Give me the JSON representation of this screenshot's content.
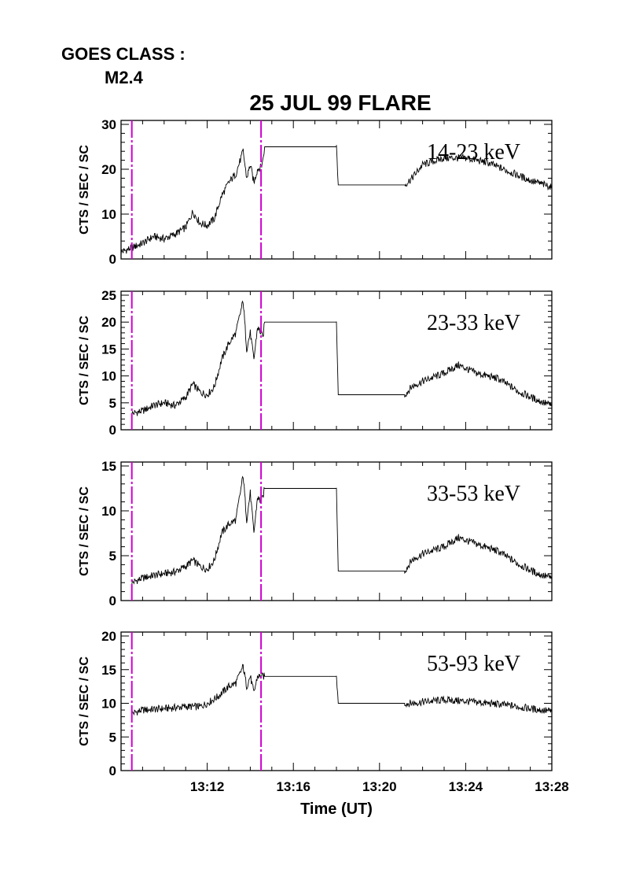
{
  "goes_class_label": "GOES CLASS :",
  "goes_class_value": "M2.4",
  "chart_data": [
    {
      "type": "line",
      "title": "25 JUL 99 FLARE",
      "band_label": "14-23 keV",
      "xlabel": "",
      "ylabel": "CTS / SEC / SC",
      "xlim": [
        "13:08:00",
        "13:28:00"
      ],
      "ylim": [
        0,
        30
      ],
      "yticks": [
        0,
        10,
        20,
        30
      ],
      "xtick_labels": [],
      "markers": [
        "13:08:30",
        "13:14:30"
      ],
      "series": [
        {
          "x": [
            "13:08:00",
            "13:08:30",
            "13:09:00",
            "13:09:30",
            "13:10:00",
            "13:10:30",
            "13:11:00",
            "13:11:20",
            "13:11:40",
            "13:12:00",
            "13:12:20",
            "13:12:40",
            "13:13:00",
            "13:13:20",
            "13:13:40",
            "13:13:50",
            "13:14:00",
            "13:14:10",
            "13:14:20",
            "13:14:30",
            "13:14:35",
            "13:14:40",
            "13:18:00",
            "13:18:05",
            "13:21:10",
            "13:21:30",
            "13:22:00",
            "13:23:00",
            "13:24:00",
            "13:25:00",
            "13:26:00",
            "13:27:00",
            "13:28:00"
          ],
          "y": [
            1.5,
            2.5,
            3.5,
            5,
            4.5,
            5.5,
            7,
            10.5,
            8,
            7.5,
            9,
            14,
            17,
            19,
            24,
            18,
            21,
            17,
            20,
            20.5,
            22,
            25,
            25,
            16.5,
            16.5,
            18,
            21,
            22.5,
            22.5,
            21.5,
            19.5,
            17.5,
            16
          ]
        }
      ]
    },
    {
      "type": "line",
      "band_label": "23-33 keV",
      "xlabel": "",
      "ylabel": "CTS / SEC / SC",
      "xlim": [
        "13:08:00",
        "13:28:00"
      ],
      "ylim": [
        0,
        25
      ],
      "yticks": [
        0,
        5,
        10,
        15,
        20,
        25
      ],
      "xtick_labels": [],
      "markers": [
        "13:08:30",
        "13:14:30"
      ],
      "series": [
        {
          "x": [
            "13:08:30",
            "13:09:00",
            "13:09:30",
            "13:10:00",
            "13:10:30",
            "13:11:00",
            "13:11:20",
            "13:11:40",
            "13:12:00",
            "13:12:20",
            "13:12:40",
            "13:13:00",
            "13:13:20",
            "13:13:40",
            "13:13:50",
            "13:14:00",
            "13:14:10",
            "13:14:20",
            "13:14:30",
            "13:14:35",
            "13:14:40",
            "13:18:00",
            "13:18:05",
            "13:21:10",
            "13:21:30",
            "13:22:00",
            "13:23:00",
            "13:23:40",
            "13:24:30",
            "13:25:30",
            "13:26:30",
            "13:27:20",
            "13:28:00"
          ],
          "y": [
            3,
            3.5,
            4.5,
            5,
            4.5,
            6,
            8.5,
            7,
            6.5,
            8,
            13,
            16,
            18,
            24,
            15,
            18,
            13,
            19,
            18,
            17,
            20,
            20,
            6.5,
            6.5,
            8,
            9,
            10.5,
            12,
            10.5,
            9.5,
            7,
            5.5,
            4.5
          ]
        }
      ]
    },
    {
      "type": "line",
      "band_label": "33-53 keV",
      "xlabel": "",
      "ylabel": "CTS / SEC / SC",
      "xlim": [
        "13:08:00",
        "13:28:00"
      ],
      "ylim": [
        0,
        15
      ],
      "yticks": [
        0,
        5,
        10,
        15
      ],
      "xtick_labels": [],
      "markers": [
        "13:08:30",
        "13:14:30"
      ],
      "series": [
        {
          "x": [
            "13:08:30",
            "13:09:00",
            "13:09:30",
            "13:10:00",
            "13:10:30",
            "13:11:00",
            "13:11:20",
            "13:11:40",
            "13:12:00",
            "13:12:20",
            "13:12:40",
            "13:13:00",
            "13:13:20",
            "13:13:40",
            "13:13:50",
            "13:14:00",
            "13:14:10",
            "13:14:20",
            "13:14:30",
            "13:14:35",
            "13:14:40",
            "13:18:00",
            "13:18:05",
            "13:21:10",
            "13:21:30",
            "13:22:00",
            "13:23:00",
            "13:23:40",
            "13:24:30",
            "13:25:30",
            "13:26:30",
            "13:27:20",
            "13:28:00"
          ],
          "y": [
            2,
            2.5,
            2.8,
            3,
            3.2,
            3.8,
            4.5,
            3.8,
            3.5,
            4.5,
            7.5,
            8.5,
            9,
            14,
            9,
            12,
            7.5,
            11.5,
            11,
            11.5,
            12.5,
            12.5,
            3.3,
            3.3,
            4.5,
            5.2,
            6,
            7,
            6.3,
            5.5,
            4,
            3,
            2.5
          ]
        }
      ]
    },
    {
      "type": "line",
      "band_label": "53-93 keV",
      "xlabel": "Time (UT)",
      "ylabel": "CTS / SEC / SC",
      "xlim": [
        "13:08:00",
        "13:28:00"
      ],
      "ylim": [
        0,
        20
      ],
      "yticks": [
        0,
        5,
        10,
        15,
        20
      ],
      "xtick_labels": [
        "13:12",
        "13:16",
        "13:20",
        "13:24",
        "13:28"
      ],
      "markers": [
        "13:08:30",
        "13:14:30"
      ],
      "series": [
        {
          "x": [
            "13:08:30",
            "13:09:00",
            "13:10:00",
            "13:11:00",
            "13:11:40",
            "13:12:00",
            "13:12:30",
            "13:13:00",
            "13:13:20",
            "13:13:40",
            "13:13:50",
            "13:14:00",
            "13:14:10",
            "13:14:20",
            "13:14:30",
            "13:14:40",
            "13:18:00",
            "13:18:05",
            "13:21:10",
            "13:21:30",
            "13:22:00",
            "13:23:00",
            "13:24:00",
            "13:25:00",
            "13:26:00",
            "13:27:00",
            "13:28:00"
          ],
          "y": [
            8.5,
            9,
            9.2,
            9.5,
            9.5,
            10,
            11,
            12.5,
            13,
            15.5,
            12.5,
            14,
            11.5,
            14,
            14,
            14,
            14,
            10,
            10,
            10,
            10.2,
            10.5,
            10.3,
            10,
            9.7,
            9.2,
            8.8
          ]
        }
      ]
    }
  ]
}
